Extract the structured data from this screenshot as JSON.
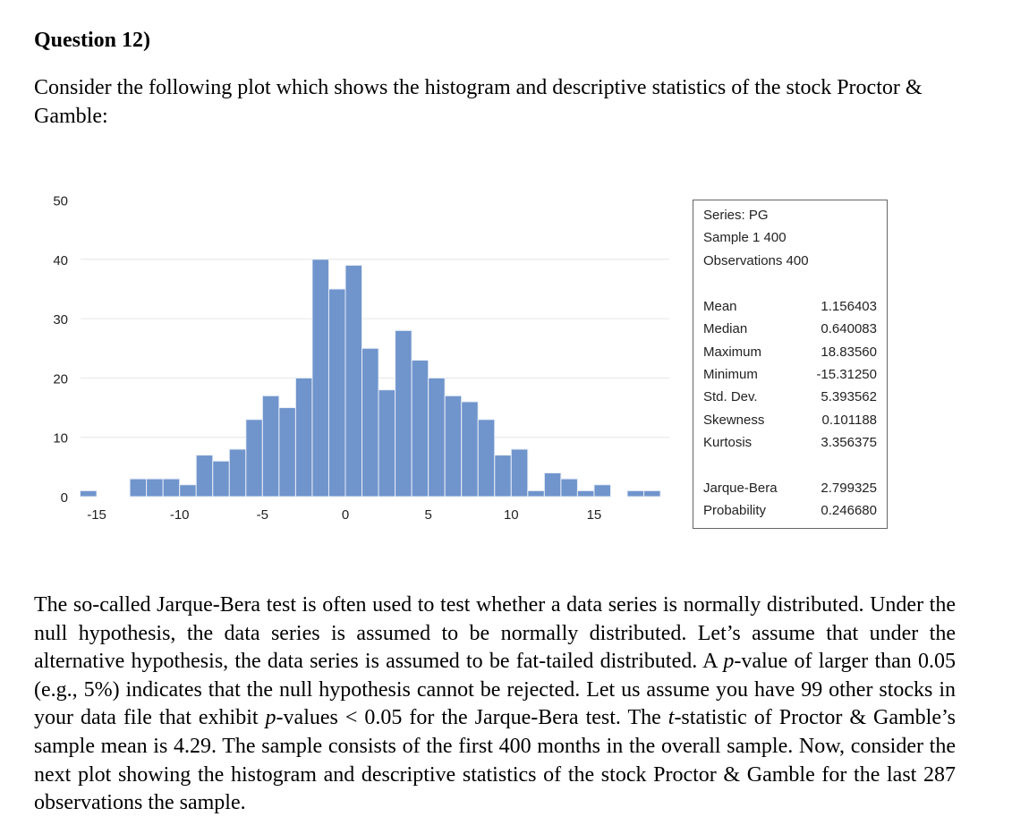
{
  "heading": "Question 12)",
  "intro": "Consider the following plot which shows the histogram and descriptive statistics of the stock Proctor & Gamble:",
  "stats_box": {
    "series": "Series: PG",
    "sample": "Sample 1 400",
    "observations": "Observations 400",
    "rows": [
      {
        "label": "Mean",
        "value": "1.156403"
      },
      {
        "label": "Median",
        "value": "0.640083"
      },
      {
        "label": "Maximum",
        "value": "18.83560"
      },
      {
        "label": "Minimum",
        "value": "-15.31250"
      },
      {
        "label": "Std. Dev.",
        "value": "5.393562"
      },
      {
        "label": "Skewness",
        "value": "0.101188"
      },
      {
        "label": "Kurtosis",
        "value": "3.356375"
      }
    ],
    "test_rows": [
      {
        "label": "Jarque-Bera",
        "value": "2.799325"
      },
      {
        "label": "Probability",
        "value": "0.246680"
      }
    ]
  },
  "body": {
    "p1": "The so-called Jarque-Bera test is often used to test whether a data series is normally distributed. Under the null hypothesis, the data series is assumed to be normally distributed. Let’s assume that under the alternative hypothesis, the data series is assumed to be fat-tailed distributed. A ",
    "p_italic": "p",
    "p2": "-value of larger than 0.05 (e.g., 5%) indicates that the null hypothesis cannot be rejected. Let us assume you have 99 other stocks in your data file that exhibit ",
    "p_italic2": "p",
    "p3": "-values < 0.05 for the Jarque-Bera test. The ",
    "t_italic": "t",
    "p4": "-statistic of Proctor & Gamble’s sample mean is 4.29. The sample consists of the first 400 months in the overall sample. Now, consider the next plot showing the histogram and descriptive statistics of the stock Proctor & Gamble for the last 287 observations the sample."
  },
  "chart_data": {
    "type": "bar",
    "title": "",
    "xlabel": "",
    "ylabel": "",
    "bar_color": "#7094cc",
    "grid_color": "#e6e6e6",
    "ylim": [
      0,
      50
    ],
    "yticks": [
      0,
      10,
      20,
      30,
      40,
      50
    ],
    "xticks": [
      -15,
      -10,
      -5,
      0,
      5,
      10,
      15
    ],
    "bin_width": 1,
    "bin_left_edges": [
      -16,
      -15,
      -14,
      -13,
      -12,
      -11,
      -10,
      -9,
      -8,
      -7,
      -6,
      -5,
      -4,
      -3,
      -2,
      -1,
      0,
      1,
      2,
      3,
      4,
      5,
      6,
      7,
      8,
      9,
      10,
      11,
      12,
      13,
      14,
      15,
      16,
      17,
      18
    ],
    "values": [
      1,
      0,
      0,
      3,
      3,
      3,
      2,
      7,
      6,
      8,
      13,
      17,
      15,
      20,
      40,
      35,
      39,
      25,
      18,
      28,
      23,
      20,
      17,
      16,
      13,
      7,
      8,
      1,
      4,
      3,
      1,
      2,
      0,
      1,
      1
    ],
    "legend": "none"
  }
}
